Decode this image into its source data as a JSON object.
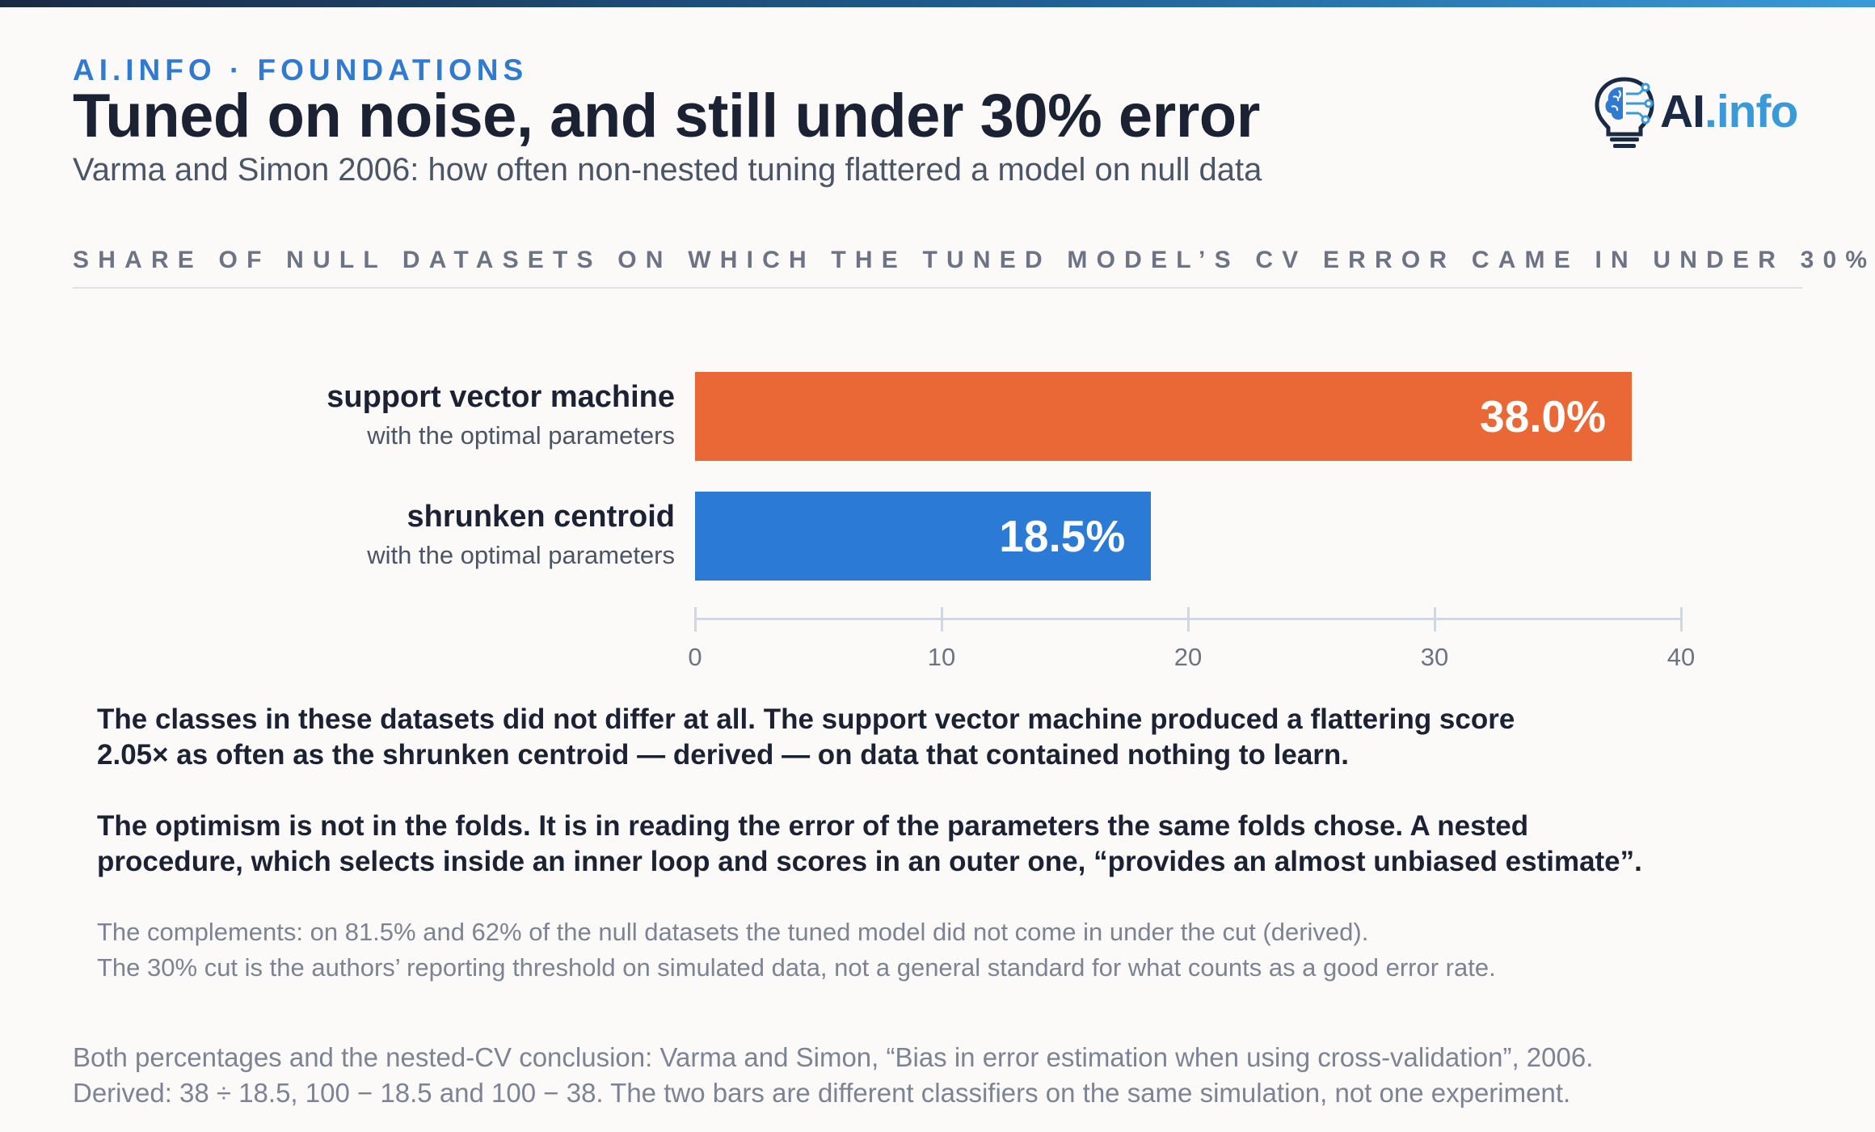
{
  "header": {
    "eyebrow": "AI.INFO · FOUNDATIONS",
    "title": "Tuned on noise, and still under 30% error",
    "subtitle": "Varma and Simon 2006: how often non-nested tuning flattered a model on null data"
  },
  "logo": {
    "ai": "AI",
    "info": ".info",
    "icon": "brain-lightbulb-icon"
  },
  "section_label": "SHARE OF NULL DATASETS ON WHICH THE TUNED MODEL’S CV ERROR CAME IN UNDER 30%",
  "chart_data": {
    "type": "bar",
    "orientation": "horizontal",
    "categories": [
      {
        "name": "support vector machine",
        "detail": "with the optimal parameters"
      },
      {
        "name": "shrunken centroid",
        "detail": "with the optimal parameters"
      }
    ],
    "values": [
      38.0,
      18.5
    ],
    "value_labels": [
      "38.0%",
      "18.5%"
    ],
    "colors": [
      "#ea6835",
      "#2b7ad6"
    ],
    "xlim": [
      0,
      40
    ],
    "xticks": [
      0,
      10,
      20,
      30,
      40
    ],
    "xtick_labels": [
      "0",
      "10",
      "20",
      "30",
      "40"
    ],
    "grid": false
  },
  "body": {
    "paragraph1": [
      "The classes in these datasets did not differ at all. The support vector machine produced a flattering score",
      "2.05× as often as the shrunken centroid — derived — on data that contained nothing to learn."
    ],
    "paragraph2": [
      "The optimism is not in the folds. It is in reading the error of the parameters the same folds chose. A nested",
      "procedure, which selects inside an inner loop and scores in an outer one, “provides an almost unbiased estimate”."
    ],
    "notes": [
      "The complements: on 81.5% and 62% of the null datasets the tuned model did not come in under the cut (derived).",
      "The 30% cut is the authors’ reporting threshold on simulated data, not a general standard for what counts as a good error rate."
    ]
  },
  "footer": {
    "sources": [
      "Both percentages and the nested-CV conclusion: Varma and Simon, “Bias in error estimation when using cross-validation”, 2006.",
      "Derived: 38 ÷ 18.5, 100 − 18.5 and 100 − 38. The two bars are different classifiers on the same simulation, not one experiment."
    ]
  }
}
